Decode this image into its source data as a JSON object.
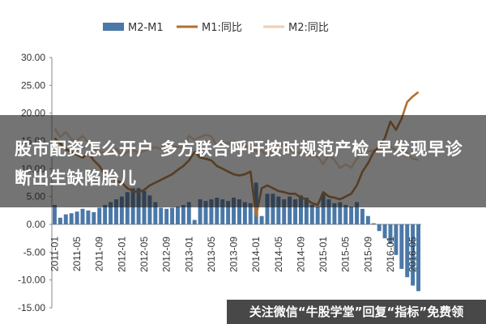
{
  "chart_data": {
    "type": "bar",
    "legend_position": "top",
    "grid": false,
    "ylim": [
      -15,
      30
    ],
    "yticks": [
      "30.00",
      "25.00",
      "20.00",
      "15.00",
      "10.00",
      "5.00",
      "0.00",
      "-5.00",
      "-10.00",
      "-15.00"
    ],
    "ytick_values": [
      30,
      25,
      20,
      15,
      10,
      5,
      0,
      -5,
      -10,
      -15
    ],
    "x_labels": [
      "2011-01",
      "2011-05",
      "2011-09",
      "2012-01",
      "2012-05",
      "2012-09",
      "2013-01",
      "2013-05",
      "2013-09",
      "2014-01",
      "2014-05",
      "2014-09",
      "2015-01",
      "2015-05",
      "2015-09",
      "2016-01",
      "2016-05"
    ],
    "x_label_indices": [
      0,
      4,
      8,
      12,
      16,
      20,
      24,
      28,
      32,
      36,
      40,
      44,
      48,
      52,
      56,
      60,
      64
    ],
    "n_points": 66,
    "series": [
      {
        "name": "M2-M1",
        "kind": "bar",
        "color": "#4a78a8",
        "values": [
          3.5,
          1.2,
          1.8,
          2.0,
          2.3,
          2.8,
          2.5,
          2.2,
          3.0,
          3.5,
          4.0,
          4.5,
          5.0,
          5.8,
          6.5,
          6.5,
          6.0,
          5.2,
          4.0,
          3.0,
          2.8,
          3.0,
          3.2,
          3.5,
          4.0,
          0.8,
          4.5,
          4.2,
          4.5,
          4.8,
          4.5,
          4.2,
          4.8,
          4.5,
          4.0,
          3.8,
          7.5,
          1.5,
          5.5,
          5.5,
          5.0,
          4.5,
          5.0,
          4.5,
          5.2,
          4.8,
          3.5,
          3.2,
          5.5,
          4.5,
          3.8,
          4.0,
          3.5,
          3.2,
          4.0,
          2.8,
          1.5,
          0.2,
          -1.2,
          -2.5,
          -3.5,
          -5.5,
          -8.0,
          -9.5,
          -11.0,
          -12.0
        ]
      },
      {
        "name": "M1:同比",
        "kind": "line",
        "color": "#b26f2e",
        "values": [
          15.5,
          14.5,
          13.5,
          13.0,
          12.5,
          12.0,
          12.8,
          11.5,
          10.5,
          9.0,
          8.5,
          7.8,
          7.5,
          6.5,
          6.0,
          5.8,
          6.2,
          7.0,
          7.5,
          8.0,
          8.5,
          9.0,
          9.8,
          10.5,
          11.5,
          13.0,
          12.0,
          11.8,
          11.5,
          10.5,
          10.0,
          9.5,
          9.0,
          8.8,
          9.0,
          9.5,
          1.5,
          6.5,
          7.0,
          6.5,
          6.0,
          5.8,
          5.5,
          5.5,
          4.8,
          4.5,
          3.8,
          3.5,
          5.8,
          5.0,
          4.8,
          4.5,
          5.0,
          5.5,
          7.0,
          9.5,
          11.0,
          13.0,
          14.0,
          15.5,
          18.5,
          17.0,
          19.0,
          22.0,
          23.0,
          23.8
        ]
      },
      {
        "name": "M2:同比",
        "kind": "line",
        "color": "#f0cdb0",
        "values": [
          17.2,
          15.7,
          16.6,
          15.3,
          15.1,
          15.9,
          14.7,
          13.6,
          13.0,
          12.9,
          12.7,
          13.6,
          12.4,
          13.0,
          13.4,
          12.8,
          13.2,
          13.6,
          13.9,
          13.5,
          14.8,
          14.1,
          13.9,
          13.8,
          15.9,
          15.2,
          15.7,
          16.1,
          15.8,
          14.0,
          14.5,
          14.7,
          14.2,
          14.3,
          14.2,
          13.6,
          13.2,
          13.3,
          12.1,
          13.4,
          13.4,
          14.7,
          13.5,
          12.8,
          12.9,
          12.6,
          12.3,
          12.2,
          10.8,
          12.5,
          11.6,
          10.1,
          10.8,
          10.2,
          11.8,
          13.3,
          13.1,
          13.3,
          13.5,
          13.3,
          14.0,
          13.3,
          13.4,
          12.8,
          11.8,
          11.6
        ]
      }
    ]
  },
  "overlay": {
    "headline": "股市配资怎么开户 多方联合呼吁按时规范产检 早发现早诊断出生缺陷胎儿",
    "watermark": "关注微信“牛股学堂”回复“指标”免费领"
  }
}
